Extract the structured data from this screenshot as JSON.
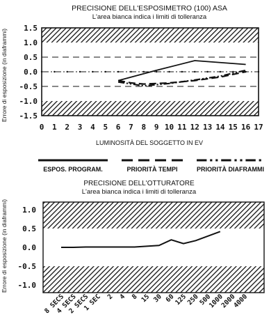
{
  "chart_data": [
    {
      "type": "line",
      "title": "PRECISIONE DELL'ESPOSIMETRO (100) ASA",
      "subtitle": "L'area bianca indica i limiti di tolleranza",
      "xlabel": "LUMINOSITÀ DEL SOGGETTO IN EV",
      "ylabel": "Errore di esposizione (in diaframmi)",
      "xlim": [
        0,
        17
      ],
      "ylim": [
        -1.5,
        1.5
      ],
      "x_ticks": [
        0,
        1,
        2,
        3,
        4,
        5,
        6,
        7,
        8,
        9,
        10,
        11,
        12,
        13,
        14,
        15,
        16,
        17
      ],
      "y_ticks": [
        1.5,
        1.0,
        0.5,
        0.0,
        -0.5,
        -1.0,
        -1.5
      ],
      "x_tick_labels": [
        "0",
        "1",
        "2",
        "3",
        "4",
        "5",
        "6",
        "7",
        "8",
        "9",
        "10",
        "11",
        "12",
        "13",
        "14",
        "15",
        "16",
        "17"
      ],
      "y_tick_labels": [
        "1.5",
        "1.0",
        "0.5",
        "0.0",
        "-0.5",
        "-1.0",
        "-1.5"
      ],
      "tolerance": [
        -1.0,
        1.0
      ],
      "shaded_bands": [
        [
          1.0,
          1.5
        ],
        [
          -1.5,
          -1.0
        ]
      ],
      "dashed_reference_lines": [
        0.5,
        -0.5
      ],
      "series": [
        {
          "name": "ESPOS. PROGRAM.",
          "style": "solid",
          "x": [
            6,
            9,
            12,
            16
          ],
          "y": [
            -0.3,
            0.05,
            0.38,
            0.25
          ]
        },
        {
          "name": "PRIORITÀ TEMPI",
          "style": "dashed",
          "x": [
            6,
            7,
            8,
            10,
            12,
            14,
            16
          ],
          "y": [
            -0.3,
            -0.38,
            -0.42,
            -0.38,
            -0.3,
            -0.18,
            0.0
          ]
        },
        {
          "name": "PRIORITÀ DIAFRAMMI",
          "style": "dashdot",
          "x": [
            6,
            8,
            10,
            12,
            14,
            16
          ],
          "y": [
            -0.35,
            -0.48,
            -0.4,
            -0.28,
            -0.15,
            0.05
          ]
        }
      ],
      "legend_position": "bottom"
    },
    {
      "type": "line",
      "title": "PRECISIONE DELL'OTTURATORE",
      "subtitle": "L'area bianca indica i limiti di tolleranza",
      "ylabel": "Errore di esposizione (in diaframmi)",
      "ylim": [
        -1.2,
        1.2
      ],
      "y_ticks": [
        1.0,
        0.5,
        0.0,
        -0.5,
        -1.0
      ],
      "y_tick_labels": [
        "1.0",
        "0.5",
        "0.0",
        "-0.5",
        "-1.0"
      ],
      "categories": [
        "8 SECS",
        "4 SECS",
        "2 SECS",
        "1 SEC",
        "2",
        "4",
        "8",
        "15",
        "30",
        "60",
        "125",
        "250",
        "500",
        "1000",
        "2000",
        "4000"
      ],
      "shaded_bands": [
        [
          0.5,
          1.2
        ],
        [
          -1.2,
          -0.5
        ]
      ],
      "series": [
        {
          "values": [
            0.0,
            0.0,
            0.01,
            0.01,
            0.01,
            0.01,
            0.01,
            0.03,
            0.05,
            0.2,
            0.1,
            0.18,
            0.3,
            0.42,
            null,
            null
          ]
        }
      ]
    }
  ]
}
